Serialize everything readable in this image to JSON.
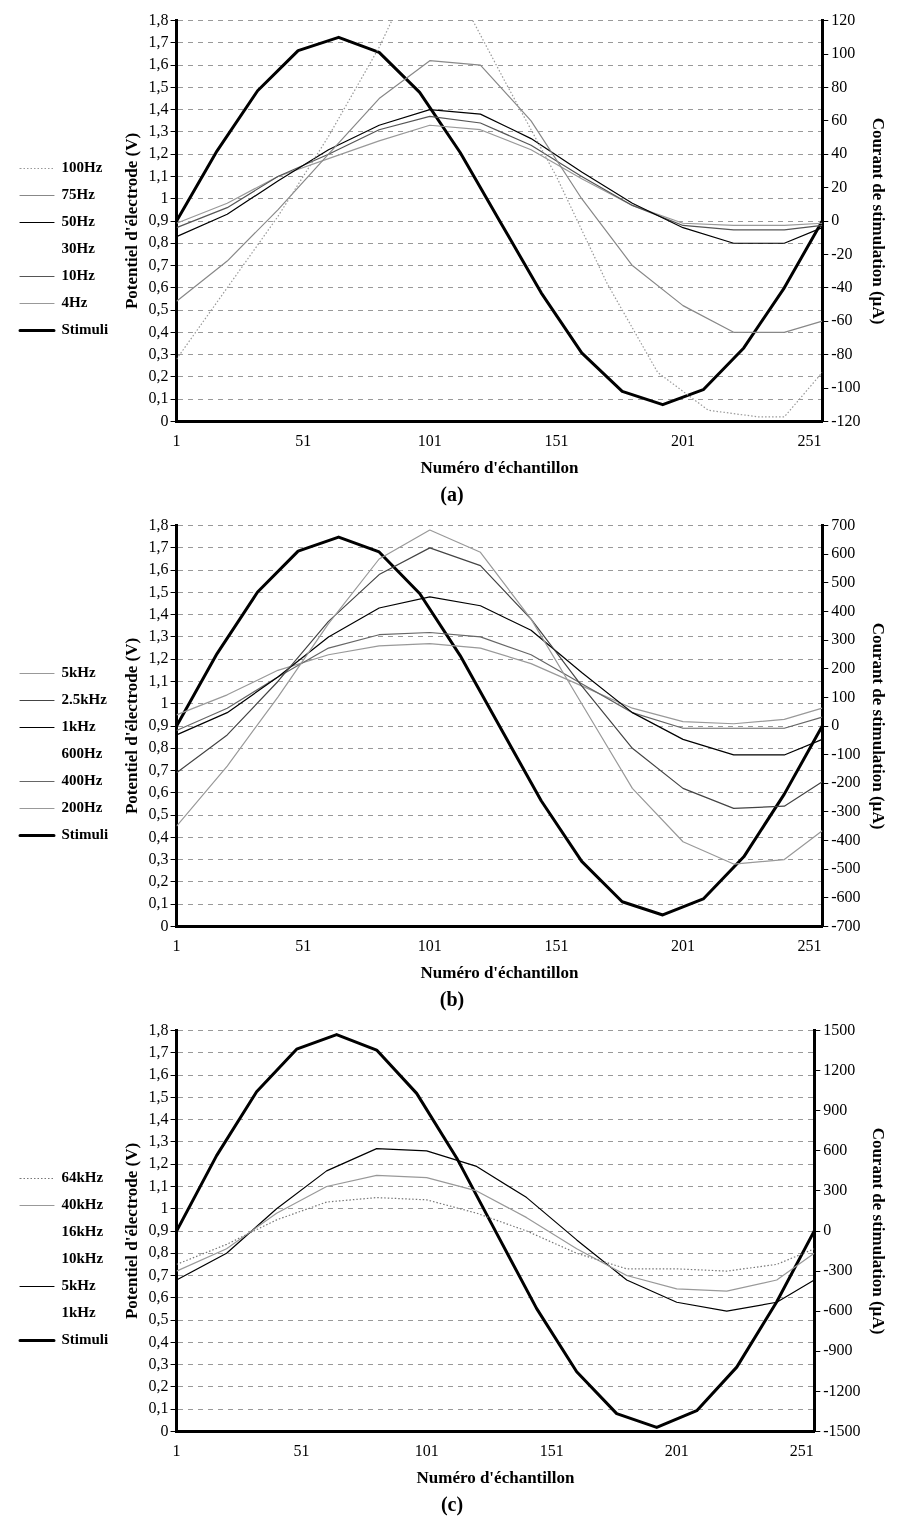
{
  "chart_data": [
    {
      "type": "line",
      "xlabel": "Numéro d'échantillon",
      "ylabel": "Potentiel d'électrode (V)",
      "y2label": "Courant de stimulation (µA)",
      "annotations": [
        "(a)"
      ],
      "legend": "left",
      "grid": "y",
      "xlim": [
        1,
        256
      ],
      "xticks": [
        1,
        51,
        101,
        151,
        201,
        251
      ],
      "ylim": [
        0,
        1.8
      ],
      "yticks": [
        {
          "value": 0,
          "label": "0"
        },
        {
          "value": 0.1,
          "label": "0,1"
        },
        {
          "value": 0.2,
          "label": "0,2"
        },
        {
          "value": 0.3,
          "label": "0,3"
        },
        {
          "value": 0.4,
          "label": "0,4"
        },
        {
          "value": 0.5,
          "label": "0,5"
        },
        {
          "value": 0.6,
          "label": "0,6"
        },
        {
          "value": 0.7,
          "label": "0,7"
        },
        {
          "value": 0.8,
          "label": "0,8"
        },
        {
          "value": 0.9,
          "label": "0,9"
        },
        {
          "value": 1,
          "label": "1"
        },
        {
          "value": 1.1,
          "label": "1,1"
        },
        {
          "value": 1.2,
          "label": "1,2"
        },
        {
          "value": 1.3,
          "label": "1,3"
        },
        {
          "value": 1.4,
          "label": "1,4"
        },
        {
          "value": 1.5,
          "label": "1,5"
        },
        {
          "value": 1.6,
          "label": "1,6"
        },
        {
          "value": 1.7,
          "label": "1,7"
        },
        {
          "value": 1.8,
          "label": "1,8"
        }
      ],
      "y2lim": [
        -120,
        120
      ],
      "y2ticks": [
        -120,
        -100,
        -80,
        -60,
        -40,
        -20,
        0,
        20,
        40,
        60,
        80,
        100,
        120
      ],
      "series": [
        {
          "name": "100Hz",
          "color": "#999999",
          "line_style": "dotted",
          "x": [
            1,
            21,
            41,
            61,
            81,
            86,
            100,
            118,
            131,
            151,
            171,
            191,
            211,
            231,
            241,
            256
          ],
          "values": [
            0.28,
            0.6,
            0.92,
            1.28,
            1.68,
            1.8,
            null,
            1.8,
            1.52,
            1.1,
            0.62,
            0.22,
            0.05,
            0.02,
            0.02,
            0.22
          ]
        },
        {
          "name": "75Hz",
          "color": "#888888",
          "x": [
            1,
            21,
            41,
            61,
            81,
            101,
            121,
            141,
            161,
            181,
            201,
            221,
            241,
            256
          ],
          "values": [
            0.54,
            0.72,
            0.95,
            1.2,
            1.45,
            1.62,
            1.6,
            1.35,
            1.0,
            0.7,
            0.52,
            0.4,
            0.4,
            0.45
          ]
        },
        {
          "name": "50Hz",
          "color": "#000000",
          "x": [
            1,
            21,
            41,
            61,
            81,
            101,
            121,
            141,
            161,
            181,
            201,
            221,
            241,
            256
          ],
          "values": [
            0.83,
            0.93,
            1.08,
            1.22,
            1.33,
            1.4,
            1.38,
            1.27,
            1.12,
            0.98,
            0.87,
            0.8,
            0.8,
            0.87
          ]
        },
        {
          "name": "30Hz"
        },
        {
          "name": "10Hz",
          "color": "#555555",
          "x": [
            1,
            21,
            41,
            61,
            81,
            101,
            121,
            141,
            161,
            181,
            201,
            221,
            241,
            256
          ],
          "values": [
            0.87,
            0.96,
            1.1,
            1.2,
            1.31,
            1.37,
            1.34,
            1.24,
            1.1,
            0.97,
            0.88,
            0.86,
            0.86,
            0.88
          ]
        },
        {
          "name": "4Hz",
          "color": "#999999",
          "x": [
            1,
            21,
            41,
            61,
            81,
            101,
            121,
            141,
            161,
            181,
            201,
            221,
            241,
            256
          ],
          "values": [
            0.89,
            0.98,
            1.1,
            1.18,
            1.26,
            1.33,
            1.31,
            1.22,
            1.09,
            0.97,
            0.89,
            0.88,
            0.88,
            0.89
          ]
        },
        {
          "name": "Stimuli",
          "color": "#000000",
          "axis": "y2",
          "x": [
            1,
            17,
            33,
            49,
            65,
            81,
            97,
            113,
            129,
            145,
            161,
            177,
            193,
            209,
            225,
            241,
            256
          ],
          "values": [
            0,
            42,
            78,
            102,
            110,
            101,
            77,
            41,
            -1,
            -43,
            -79,
            -102,
            -110,
            -101,
            -76,
            -40,
            0
          ]
        }
      ]
    },
    {
      "type": "line",
      "xlabel": "Numéro d'échantillon",
      "ylabel": "Potentiel d'électrode (V)",
      "y2label": "Courant de stimulation (µA)",
      "annotations": [
        "(b)"
      ],
      "legend": "left",
      "grid": "y",
      "xlim": [
        1,
        256
      ],
      "xticks": [
        1,
        51,
        101,
        151,
        201,
        251
      ],
      "ylim": [
        0,
        1.8
      ],
      "yticks": [
        {
          "value": 0,
          "label": "0"
        },
        {
          "value": 0.1,
          "label": "0,1"
        },
        {
          "value": 0.2,
          "label": "0,2"
        },
        {
          "value": 0.3,
          "label": "0,3"
        },
        {
          "value": 0.4,
          "label": "0,4"
        },
        {
          "value": 0.5,
          "label": "0,5"
        },
        {
          "value": 0.6,
          "label": "0,6"
        },
        {
          "value": 0.7,
          "label": "0,7"
        },
        {
          "value": 0.8,
          "label": "0,8"
        },
        {
          "value": 0.9,
          "label": "0,9"
        },
        {
          "value": 1,
          "label": "1"
        },
        {
          "value": 1.1,
          "label": "1,1"
        },
        {
          "value": 1.2,
          "label": "1,2"
        },
        {
          "value": 1.3,
          "label": "1,3"
        },
        {
          "value": 1.4,
          "label": "1,4"
        },
        {
          "value": 1.5,
          "label": "1,5"
        },
        {
          "value": 1.6,
          "label": "1,6"
        },
        {
          "value": 1.7,
          "label": "1,7"
        },
        {
          "value": 1.8,
          "label": "1,8"
        }
      ],
      "y2lim": [
        -700,
        700
      ],
      "y2ticks": [
        -700,
        -600,
        -500,
        -400,
        -300,
        -200,
        -100,
        0,
        100,
        200,
        300,
        400,
        500,
        600,
        700
      ],
      "series": [
        {
          "name": "5kHz",
          "color": "#999999",
          "x": [
            1,
            21,
            41,
            61,
            81,
            101,
            121,
            141,
            161,
            181,
            201,
            221,
            241,
            256
          ],
          "values": [
            0.45,
            0.72,
            1.03,
            1.36,
            1.65,
            1.78,
            1.68,
            1.38,
            1.0,
            0.62,
            0.38,
            0.28,
            0.3,
            0.43
          ]
        },
        {
          "name": "2.5kHz",
          "color": "#444444",
          "x": [
            1,
            21,
            41,
            61,
            81,
            101,
            121,
            141,
            161,
            181,
            201,
            221,
            241,
            256
          ],
          "values": [
            0.69,
            0.86,
            1.1,
            1.37,
            1.58,
            1.7,
            1.62,
            1.38,
            1.08,
            0.8,
            0.62,
            0.53,
            0.54,
            0.65
          ]
        },
        {
          "name": "1kHz",
          "color": "#000000",
          "x": [
            1,
            21,
            41,
            61,
            81,
            101,
            121,
            141,
            161,
            181,
            201,
            221,
            241,
            256
          ],
          "values": [
            0.86,
            0.96,
            1.12,
            1.3,
            1.43,
            1.48,
            1.44,
            1.33,
            1.14,
            0.96,
            0.84,
            0.77,
            0.77,
            0.84
          ]
        },
        {
          "name": "600Hz"
        },
        {
          "name": "400Hz",
          "color": "#666666",
          "x": [
            1,
            21,
            41,
            61,
            81,
            101,
            121,
            141,
            161,
            181,
            201,
            221,
            241,
            256
          ],
          "values": [
            0.88,
            0.98,
            1.12,
            1.25,
            1.31,
            1.32,
            1.3,
            1.22,
            1.09,
            0.96,
            0.89,
            0.89,
            0.89,
            0.94
          ]
        },
        {
          "name": "200Hz",
          "color": "#999999",
          "x": [
            1,
            21,
            41,
            61,
            81,
            101,
            121,
            141,
            161,
            181,
            201,
            221,
            241,
            256
          ],
          "values": [
            0.95,
            1.04,
            1.15,
            1.22,
            1.26,
            1.27,
            1.25,
            1.18,
            1.08,
            0.98,
            0.92,
            0.91,
            0.93,
            0.98
          ]
        },
        {
          "name": "Stimuli",
          "color": "#000000",
          "axis": "y2",
          "x": [
            1,
            17,
            33,
            49,
            65,
            81,
            97,
            113,
            129,
            145,
            161,
            177,
            193,
            209,
            225,
            241,
            256
          ],
          "values": [
            0,
            253,
            468,
            611,
            660,
            608,
            463,
            246,
            -8,
            -261,
            -473,
            -614,
            -660,
            -604,
            -457,
            -238,
            0
          ]
        }
      ]
    },
    {
      "type": "line",
      "xlabel": "Numéro d'échantillon",
      "ylabel": "Potentiel d'électrode (V)",
      "y2label": "Courant de stimulation (µA)",
      "annotations": [
        "(c)"
      ],
      "legend": "left",
      "grid": "y",
      "xlim": [
        1,
        256
      ],
      "xticks": [
        1,
        51,
        101,
        151,
        201,
        251
      ],
      "ylim": [
        0,
        1.8
      ],
      "yticks": [
        {
          "value": 0,
          "label": "0"
        },
        {
          "value": 0.1,
          "label": "0,1"
        },
        {
          "value": 0.2,
          "label": "0,2"
        },
        {
          "value": 0.3,
          "label": "0,3"
        },
        {
          "value": 0.4,
          "label": "0,4"
        },
        {
          "value": 0.5,
          "label": "0,5"
        },
        {
          "value": 0.6,
          "label": "0,6"
        },
        {
          "value": 0.7,
          "label": "0,7"
        },
        {
          "value": 0.8,
          "label": "0,8"
        },
        {
          "value": 0.9,
          "label": "0,9"
        },
        {
          "value": 1,
          "label": "1"
        },
        {
          "value": 1.1,
          "label": "1,1"
        },
        {
          "value": 1.2,
          "label": "1,2"
        },
        {
          "value": 1.3,
          "label": "1,3"
        },
        {
          "value": 1.4,
          "label": "1,4"
        },
        {
          "value": 1.5,
          "label": "1,5"
        },
        {
          "value": 1.6,
          "label": "1,6"
        },
        {
          "value": 1.7,
          "label": "1,7"
        },
        {
          "value": 1.8,
          "label": "1,8"
        }
      ],
      "y2lim": [
        -1500,
        1500
      ],
      "y2ticks": [
        -1500,
        -1200,
        -900,
        -600,
        -300,
        0,
        300,
        600,
        900,
        1200,
        1500
      ],
      "series": [
        {
          "name": "64kHz",
          "color": "#777777",
          "line_style": "dotted",
          "x": [
            1,
            21,
            41,
            61,
            81,
            101,
            121,
            141,
            161,
            181,
            201,
            221,
            241,
            256
          ],
          "values": [
            0.75,
            0.84,
            0.95,
            1.03,
            1.05,
            1.04,
            0.98,
            0.9,
            0.8,
            0.73,
            0.73,
            0.72,
            0.75,
            0.82
          ]
        },
        {
          "name": "40kHz",
          "color": "#999999",
          "x": [
            1,
            21,
            41,
            61,
            81,
            101,
            121,
            141,
            161,
            181,
            201,
            221,
            241,
            256
          ],
          "values": [
            0.72,
            0.82,
            0.98,
            1.1,
            1.15,
            1.14,
            1.08,
            0.96,
            0.82,
            0.7,
            0.64,
            0.63,
            0.68,
            0.8
          ]
        },
        {
          "name": "16kHz"
        },
        {
          "name": "10kHz"
        },
        {
          "name": "5kHz",
          "color": "#000000",
          "x": [
            1,
            21,
            41,
            61,
            81,
            101,
            121,
            141,
            161,
            181,
            201,
            221,
            241,
            256
          ],
          "values": [
            0.68,
            0.8,
            1.0,
            1.17,
            1.27,
            1.26,
            1.19,
            1.05,
            0.86,
            0.68,
            0.58,
            0.54,
            0.58,
            0.68
          ]
        },
        {
          "name": "1kHz"
        },
        {
          "name": "Stimuli",
          "color": "#000000",
          "axis": "y2",
          "x": [
            1,
            17,
            33,
            49,
            65,
            81,
            97,
            113,
            129,
            145,
            161,
            177,
            193,
            209,
            225,
            241,
            256
          ],
          "values": [
            0,
            564,
            1042,
            1361,
            1470,
            1354,
            1030,
            547,
            -18,
            -581,
            -1054,
            -1367,
            -1470,
            -1345,
            -1019,
            -529,
            0
          ]
        }
      ]
    }
  ]
}
